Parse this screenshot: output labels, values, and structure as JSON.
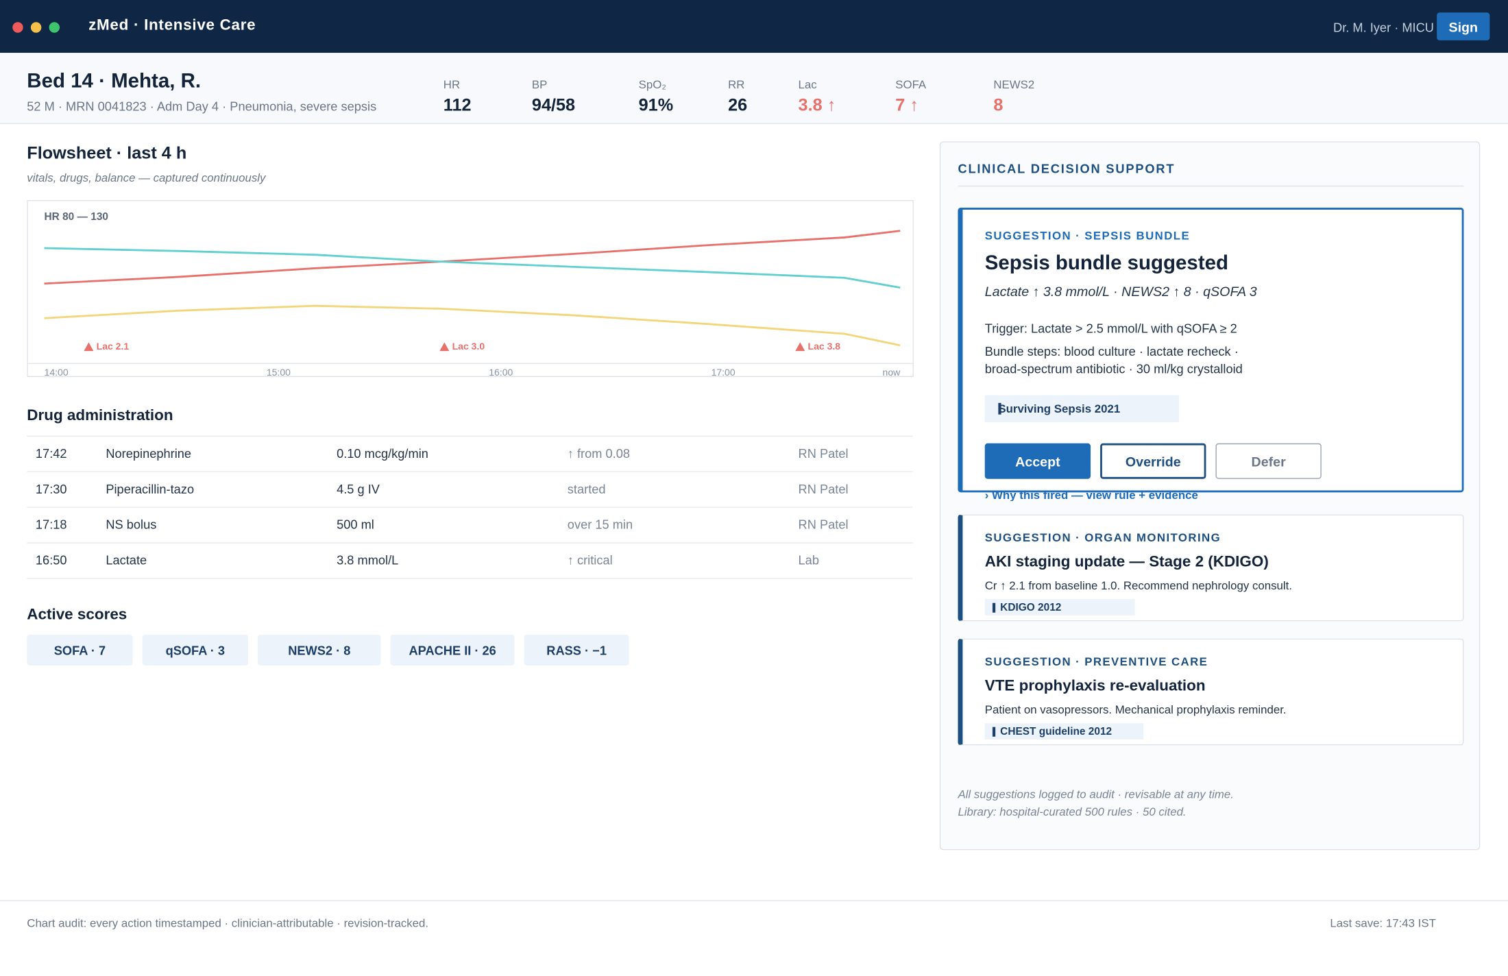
{
  "app": {
    "title": "zMed · Intensive Care",
    "user": "Dr. M. Iyer · MICU",
    "sign_button": "Sign"
  },
  "patient": {
    "name": "Bed 14 · Mehta, R.",
    "details": "52 M · MRN 0041823 · Adm Day 4 · Pneumonia, severe sepsis"
  },
  "vitals": [
    {
      "label": "HR",
      "value": "112",
      "alert": false
    },
    {
      "label": "BP",
      "value": "94/58",
      "alert": false
    },
    {
      "label": "SpO₂",
      "value": "91%",
      "alert": false
    },
    {
      "label": "RR",
      "value": "26",
      "alert": false
    },
    {
      "label": "Lac",
      "value": "3.8 ↑",
      "alert": true
    },
    {
      "label": "SOFA",
      "value": "7 ↑",
      "alert": true
    },
    {
      "label": "NEWS2",
      "value": "8",
      "alert": true
    }
  ],
  "flowsheet": {
    "title": "Flowsheet · last 4 h",
    "subtitle": "vitals, drugs, balance — captured continuously",
    "chart_data": {
      "type": "line",
      "label": "HR 80 — 130",
      "x": [
        0,
        36,
        73,
        107,
        143,
        179,
        216,
        231
      ],
      "xlim": [
        0,
        231
      ],
      "xticks": [
        {
          "value": 0,
          "label": "14:00"
        },
        {
          "value": 60,
          "label": "15:00"
        },
        {
          "value": 120,
          "label": "16:00"
        },
        {
          "value": 180,
          "label": "17:00"
        },
        {
          "value": 231,
          "label": "now"
        }
      ],
      "ylim": [
        80,
        130
      ],
      "series": [
        {
          "color": "#e8706b",
          "values": [
            107.7,
            110,
            113,
            115.3,
            118,
            121,
            123.7,
            126
          ]
        },
        {
          "color": "#5fcfcf",
          "values": [
            120,
            119,
            117.7,
            115.3,
            113.5,
            111.7,
            109.7,
            106.3
          ]
        },
        {
          "color": "#f3d57a",
          "values": [
            95.7,
            98.3,
            100,
            99,
            96.7,
            93.7,
            90.3,
            86.3
          ]
        }
      ],
      "annotations": [
        {
          "x": 12,
          "text": "Lac 2.1"
        },
        {
          "x": 108,
          "text": "Lac 3.0"
        },
        {
          "x": 204,
          "text": "Lac 3.8"
        }
      ],
      "annotation_color": "#e8706b"
    }
  },
  "drugs": {
    "title": "Drug administration",
    "rows": [
      [
        "17:42",
        "Norepinephrine",
        "0.10 mcg/kg/min",
        "↑ from 0.08",
        "RN Patel"
      ],
      [
        "17:30",
        "Piperacillin-tazo",
        "4.5 g IV",
        "started",
        "RN Patel"
      ],
      [
        "17:18",
        "NS bolus",
        "500 ml",
        "over 15 min",
        "RN Patel"
      ],
      [
        "16:50",
        "Lactate",
        "3.8 mmol/L",
        "↑ critical",
        "Lab"
      ]
    ]
  },
  "scores": {
    "title": "Active scores",
    "items": [
      "SOFA · 7",
      "qSOFA · 3",
      "NEWS2 · 8",
      "APACHE II · 26",
      "RASS · −1"
    ]
  },
  "cds": {
    "title": "CLINICAL DECISION SUPPORT",
    "primary": {
      "tag": "SUGGESTION · SEPSIS BUNDLE",
      "title": "Sepsis bundle suggested",
      "summary": "Lactate ↑ 3.8 mmol/L · NEWS2 ↑ 8 · qSOFA 3",
      "trigger": "Trigger: Lactate > 2.5 mmol/L with qSOFA ≥ 2",
      "steps": "Bundle steps: blood culture · lactate recheck · broad-spectrum antibiotic · 30 ml/kg crystalloid",
      "citation": "Surviving Sepsis 2021",
      "actions": [
        "Accept",
        "Override",
        "Defer"
      ],
      "link": "› Why this fired — view rule + evidence"
    },
    "cards": [
      {
        "tag": "SUGGESTION · ORGAN MONITORING",
        "title": "AKI staging update — Stage 2 (KDIGO)",
        "text": "Cr ↑ 2.1 from baseline 1.0. Recommend nephrology consult.",
        "citation": "KDIGO 2012"
      },
      {
        "tag": "SUGGESTION · PREVENTIVE CARE",
        "title": "VTE prophylaxis re-evaluation",
        "text": "Patient on vasopressors. Mechanical prophylaxis reminder.",
        "citation": "CHEST guideline 2012"
      }
    ],
    "notes": [
      "All suggestions logged to audit · revisable at any time.",
      "Library: hospital-curated 500 rules · 50 cited."
    ]
  },
  "footer": {
    "audit": "Chart audit: every action timestamped · clinician-attributable · revision-tracked.",
    "last_save": "Last save: 17:43 IST"
  }
}
